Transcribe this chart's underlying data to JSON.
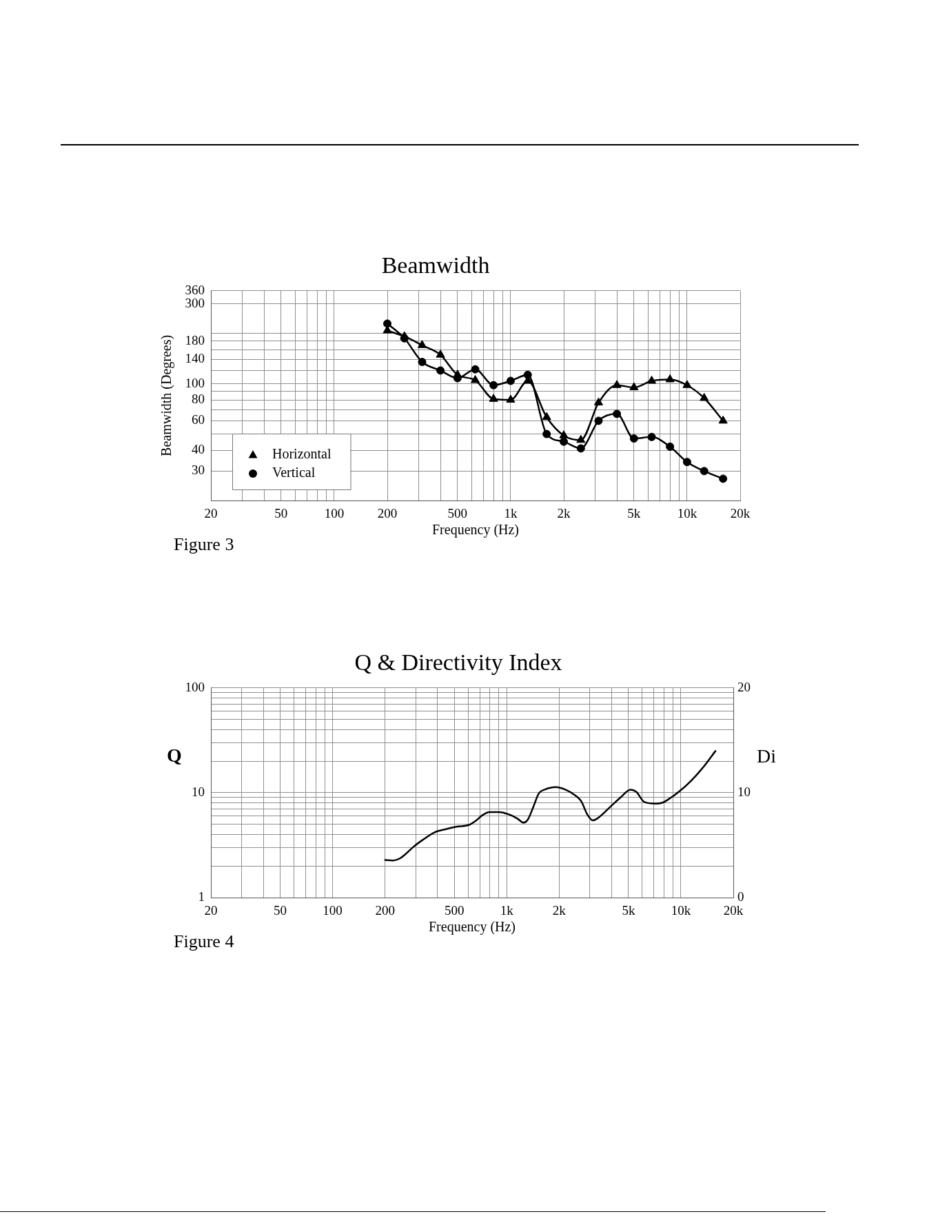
{
  "chart_data": [
    {
      "type": "line",
      "title": "Beamwidth",
      "xlabel": "Frequency (Hz)",
      "ylabel": "Beamwidth (Degrees)",
      "annotations": [
        "Figure 3"
      ],
      "x": [
        200,
        250,
        315,
        400,
        500,
        630,
        800,
        1000,
        1250,
        1600,
        2000,
        2500,
        3150,
        4000,
        5000,
        6300,
        8000,
        10000,
        12500,
        16000
      ],
      "series": [
        {
          "name": "Horizontal",
          "color": "#000000",
          "marker": "triangle",
          "values": [
            208,
            192,
            170,
            149,
            113,
            105,
            81,
            80,
            104,
            63,
            49,
            46,
            77,
            98,
            95,
            104,
            106,
            98,
            82,
            60
          ]
        },
        {
          "name": "Vertical",
          "color": "#000000",
          "marker": "circle",
          "values": [
            229,
            187,
            135,
            120,
            108,
            122,
            98,
            104,
            113,
            50,
            45,
            41,
            60,
            66,
            47,
            48,
            42,
            34,
            30,
            27
          ]
        }
      ],
      "log": "xy",
      "xlim": [
        20,
        20000
      ],
      "xticks": [
        20,
        {
          "value": 30,
          "label": null
        },
        {
          "value": 40,
          "label": null
        },
        50,
        {
          "value": 60,
          "label": null
        },
        {
          "value": 70,
          "label": null
        },
        {
          "value": 80,
          "label": null
        },
        {
          "value": 90,
          "label": null
        },
        100,
        200,
        {
          "value": 300,
          "label": null
        },
        {
          "value": 400,
          "label": null
        },
        500,
        {
          "value": 600,
          "label": null
        },
        {
          "value": 700,
          "label": null
        },
        {
          "value": 800,
          "label": null
        },
        {
          "value": 900,
          "label": null
        },
        {
          "value": 1000,
          "label": "1k"
        },
        {
          "value": 2000,
          "label": "2k"
        },
        {
          "value": 3000,
          "label": null
        },
        {
          "value": 4000,
          "label": null
        },
        {
          "value": 5000,
          "label": "5k"
        },
        {
          "value": 6000,
          "label": null
        },
        {
          "value": 7000,
          "label": null
        },
        {
          "value": 8000,
          "label": null
        },
        {
          "value": 9000,
          "label": null
        },
        {
          "value": 10000,
          "label": "10k"
        },
        {
          "value": 20000,
          "label": "20k"
        }
      ],
      "ylim": [
        20,
        360
      ],
      "yticks": [
        30,
        40,
        {
          "value": 50,
          "label": null
        },
        60,
        {
          "value": 70,
          "label": null
        },
        80,
        {
          "value": 90,
          "label": null
        },
        100,
        {
          "value": 120,
          "label": null
        },
        140,
        {
          "value": 160,
          "label": null
        },
        180,
        {
          "value": 200,
          "label": null
        },
        300,
        360
      ],
      "grid": true,
      "legend": "bottom left"
    },
    {
      "type": "line",
      "title": "Q & Directivity Index",
      "xlabel": "Frequency (Hz)",
      "ylabel": "Q",
      "y2label": "Di",
      "annotations": [
        "Figure 4"
      ],
      "series": [
        {
          "color": "#000000",
          "x": [
            200,
            222,
            244,
            259,
            292,
            330,
            384,
            447,
            520,
            605,
            663,
            726,
            796,
            898,
            1030,
            1150,
            1250,
            1320,
            1420,
            1530,
            1650,
            1910,
            2170,
            2480,
            2680,
            2890,
            3120,
            3310,
            3970,
            4480,
            5140,
            5540,
            6170,
            7180,
            7740,
            8740,
            9870,
            11500,
            13400,
            15800
          ],
          "values": [
            2.28,
            2.26,
            2.37,
            2.55,
            3.06,
            3.56,
            4.18,
            4.49,
            4.75,
            4.92,
            5.39,
            6.12,
            6.54,
            6.54,
            6.21,
            5.67,
            5.18,
            5.53,
            7.3,
            9.89,
            10.7,
            11.3,
            10.7,
            9.41,
            8.28,
            6.28,
            5.45,
            5.67,
            7.45,
            8.94,
            10.7,
            10.2,
            8.16,
            7.88,
            7.98,
            8.94,
            10.4,
            13.1,
            17.4,
            25.0
          ]
        }
      ],
      "log": "xy",
      "xlim": [
        20,
        20000
      ],
      "xticks": [
        20,
        {
          "value": 30,
          "label": null
        },
        {
          "value": 40,
          "label": null
        },
        50,
        {
          "value": 60,
          "label": null
        },
        {
          "value": 70,
          "label": null
        },
        {
          "value": 80,
          "label": null
        },
        {
          "value": 90,
          "label": null
        },
        100,
        200,
        {
          "value": 300,
          "label": null
        },
        {
          "value": 400,
          "label": null
        },
        500,
        {
          "value": 600,
          "label": null
        },
        {
          "value": 700,
          "label": null
        },
        {
          "value": 800,
          "label": null
        },
        {
          "value": 900,
          "label": null
        },
        {
          "value": 1000,
          "label": "1k"
        },
        {
          "value": 2000,
          "label": "2k"
        },
        {
          "value": 3000,
          "label": null
        },
        {
          "value": 4000,
          "label": null
        },
        {
          "value": 5000,
          "label": "5k"
        },
        {
          "value": 6000,
          "label": null
        },
        {
          "value": 7000,
          "label": null
        },
        {
          "value": 8000,
          "label": null
        },
        {
          "value": 9000,
          "label": null
        },
        {
          "value": 10000,
          "label": "10k"
        },
        {
          "value": 20000,
          "label": "20k"
        }
      ],
      "ylim": [
        1,
        100
      ],
      "yticks": [
        1,
        {
          "value": 2,
          "label": null
        },
        {
          "value": 3,
          "label": null
        },
        {
          "value": 4,
          "label": null
        },
        {
          "value": 5,
          "label": null
        },
        {
          "value": 6,
          "label": null
        },
        {
          "value": 7,
          "label": null
        },
        {
          "value": 8,
          "label": null
        },
        {
          "value": 9,
          "label": null
        },
        10,
        {
          "value": 20,
          "label": null
        },
        {
          "value": 30,
          "label": null
        },
        {
          "value": 40,
          "label": null
        },
        {
          "value": 50,
          "label": null
        },
        {
          "value": 60,
          "label": null
        },
        {
          "value": 70,
          "label": null
        },
        {
          "value": 80,
          "label": null
        },
        {
          "value": 90,
          "label": null
        },
        100
      ],
      "y2lim": [
        0,
        20
      ],
      "y2ticks": [
        0,
        10,
        20
      ],
      "grid": true
    }
  ]
}
